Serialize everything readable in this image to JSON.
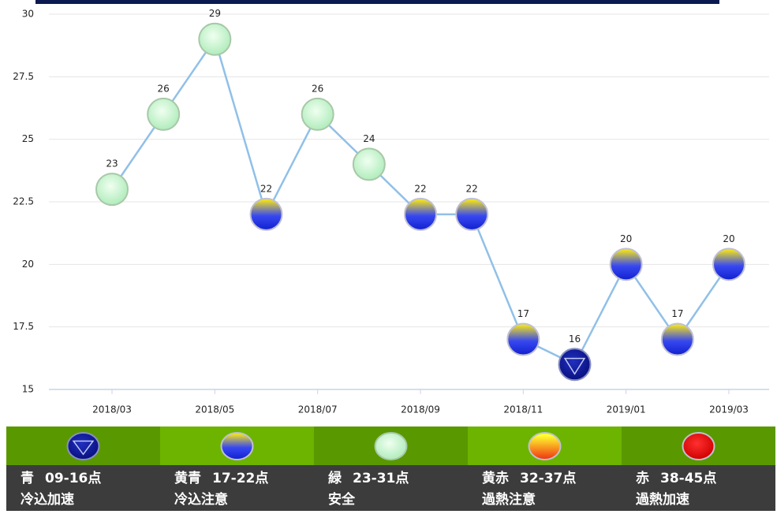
{
  "chart_data": {
    "type": "line",
    "categories": [
      "2018/03",
      null,
      "2018/05",
      null,
      "2018/07",
      null,
      "2018/09",
      null,
      "2018/11",
      null,
      "2019/01",
      null,
      "2019/03"
    ],
    "series": [
      {
        "color": "#90c0e8",
        "values": [
          23,
          26,
          29,
          22,
          26,
          24,
          22,
          22,
          17,
          16,
          20,
          17,
          20
        ]
      }
    ],
    "ylim": [
      15,
      30
    ],
    "yticks": [
      15,
      17.5,
      20,
      22.5,
      25,
      27.5,
      30
    ],
    "grid": true
  },
  "legend": [
    {
      "name": "青",
      "range": "09-16点",
      "note": "冷込加速",
      "marker": "blue"
    },
    {
      "name": "黄青",
      "range": "17-22点",
      "note": "冷込注意",
      "marker": "yellowblue"
    },
    {
      "name": "緑",
      "range": "23-31点",
      "note": "安全",
      "marker": "green"
    },
    {
      "name": "黄赤",
      "range": "32-37点",
      "note": "過熱注意",
      "marker": "yellowred"
    },
    {
      "name": "赤",
      "range": "38-45点",
      "note": "過熱加速",
      "marker": "red"
    }
  ]
}
